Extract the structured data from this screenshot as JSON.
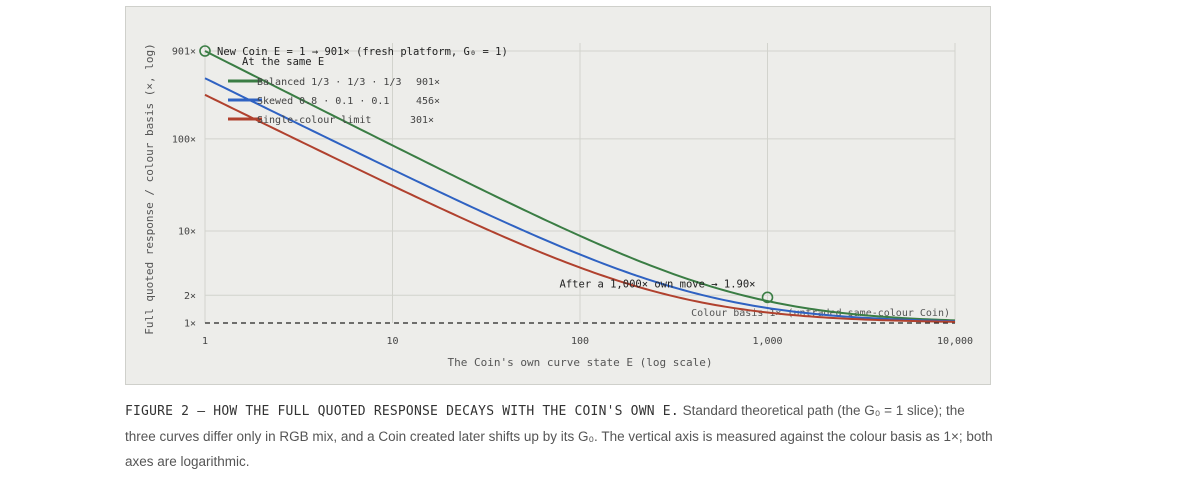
{
  "chart_data": {
    "type": "line",
    "xlabel": "The Coin's own curve state E (log scale)",
    "ylabel": "Full quoted response / colour basis (×, log)",
    "x_scale": "log",
    "y_scale": "log",
    "xlim": [
      1,
      10000
    ],
    "ylim": [
      1,
      901
    ],
    "x_ticks": [
      {
        "value": 1,
        "label": "1"
      },
      {
        "value": 10,
        "label": "10"
      },
      {
        "value": 100,
        "label": "100"
      },
      {
        "value": 1000,
        "label": "1,000"
      },
      {
        "value": 10000,
        "label": "10,000"
      }
    ],
    "y_ticks": [
      {
        "value": 1,
        "label": "1×"
      },
      {
        "value": 2,
        "label": "2×"
      },
      {
        "value": 10,
        "label": "10×"
      },
      {
        "value": 100,
        "label": "100×"
      },
      {
        "value": 901,
        "label": "901×"
      }
    ],
    "grid": true,
    "legend": {
      "title": "At the same E",
      "position": "top-left"
    },
    "series": [
      {
        "name": "Balanced 1/3 · 1/3 · 1/3",
        "value_label": "901×",
        "color": "#3a7d44",
        "start_value": 901,
        "a": 900,
        "p": 1.03
      },
      {
        "name": "Skewed 0.8 · 0.1 · 0.1",
        "value_label": "456×",
        "color": "#2f62c2",
        "start_value": 456,
        "a": 455,
        "p": 1.0
      },
      {
        "name": "Single-colour limit",
        "value_label": "301×",
        "color": "#b0412e",
        "start_value": 301,
        "a": 300,
        "p": 1.0
      }
    ],
    "baseline": {
      "value": 1,
      "label": "Colour basis 1× (untraded same-colour Coin)",
      "style": "dashed"
    },
    "annotations": [
      {
        "text": "New Coin E = 1 → 901× (fresh platform, G₀ = 1)",
        "x": 1,
        "y": 901,
        "marker": "circle"
      },
      {
        "text": "After a 1,000× own move → 1.90×",
        "x": 1000,
        "y": 1.9,
        "marker": "circle"
      }
    ]
  },
  "caption": {
    "title": "FIGURE 2 — HOW THE FULL QUOTED RESPONSE DECAYS WITH THE COIN'S OWN E.",
    "body": " Standard theoretical path (the G₀ = 1 slice); the three curves differ only in RGB mix, and a Coin created later shifts up by its G₀. The vertical axis is measured against the colour basis as 1×; both axes are logarithmic."
  }
}
